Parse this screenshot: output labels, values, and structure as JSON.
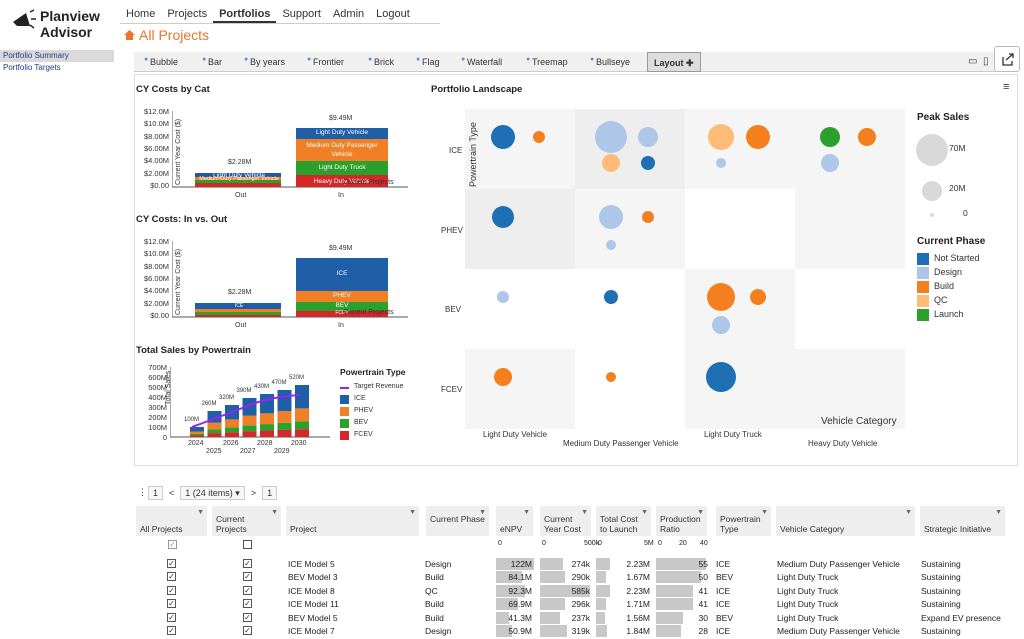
{
  "brand": {
    "line1": "Planview",
    "line2": "Advisor"
  },
  "nav": [
    "Home",
    "Projects",
    "Portfolios",
    "Support",
    "Admin",
    "Logout"
  ],
  "nav_active": "Portfolios",
  "page_title": "All Projects",
  "sidebar": [
    "Portfolio Summary",
    "Portfolio Targets"
  ],
  "tabs": [
    "Bubble",
    "Bar",
    "By years",
    "Frontier",
    "Brick",
    "Flag",
    "Waterfall",
    "Treemap",
    "Bullseye",
    "Layout"
  ],
  "tab_active": "Layout",
  "charts": {
    "cy_cat": {
      "title": "CY Costs by Cat",
      "ylabel": "Current Year Cost ($)",
      "yticks": [
        "$12.0M",
        "$10.0M",
        "$8.00M",
        "$6.00M",
        "$4.00M",
        "$2.00M",
        "$0.00"
      ],
      "xlabels": [
        "Out",
        "In"
      ],
      "totals": [
        "$2.28M",
        "$9.49M"
      ],
      "xaxis_title": "Current Projects",
      "segments_in": [
        "Light Duty Vehicle",
        "Medium Duty Passenger Vehicle",
        "Light Duty Truck",
        "Heavy Duty Vehicle"
      ],
      "segments_out": [
        "Light Duty Vehicle",
        "Medium Duty Passenger Vehicle"
      ]
    },
    "cy_inout": {
      "title": "CY Costs: In vs. Out",
      "ylabel": "Current Year Cost ($)",
      "yticks": [
        "$12.0M",
        "$10.0M",
        "$8.00M",
        "$6.00M",
        "$4.00M",
        "$2.00M",
        "$0.00"
      ],
      "xlabels": [
        "Out",
        "In"
      ],
      "totals": [
        "$2.28M",
        "$9.49M"
      ],
      "xaxis_title": "Current Projects",
      "segments_in": [
        "ICE",
        "PHEV",
        "BEV",
        "FCEV"
      ],
      "segments_out": [
        "ICE"
      ]
    },
    "sales": {
      "title": "Total Sales by Powertrain",
      "ylabel": "Total Sales",
      "yticks": [
        "700M",
        "600M",
        "500M",
        "400M",
        "300M",
        "200M",
        "100M",
        "0"
      ],
      "years_top": [
        "2024",
        "2026",
        "2028",
        "2030"
      ],
      "years_bottom": [
        "2025",
        "2027",
        "2029"
      ],
      "bar_labels": [
        "100M",
        "260M",
        "320M",
        "390M",
        "430M",
        "470M",
        "520M"
      ],
      "legend_title": "Powertrain Type",
      "legend": [
        "Target Revenue",
        "ICE",
        "PHEV",
        "BEV",
        "FCEV"
      ]
    },
    "landscape": {
      "title": "Portfolio Landscape",
      "ylabel": "Powertrain Type",
      "rows": [
        "ICE",
        "PHEV",
        "BEV",
        "FCEV"
      ],
      "cols_top": [
        "Light Duty Vehicle",
        "Light Duty Truck"
      ],
      "cols_bottom": [
        "Medium Duty Passenger Vehicle",
        "Heavy Duty Vehicle"
      ],
      "xlabel": "Vehicle Category",
      "size_title": "Peak Sales",
      "size_labels": [
        "70M",
        "20M",
        "0"
      ],
      "phase_title": "Current Phase",
      "phases": [
        "Not Started",
        "Design",
        "Build",
        "QC",
        "Launch"
      ]
    }
  },
  "colors": {
    "ice": "#1f5fa8",
    "phev": "#f07f26",
    "bev": "#2ca02c",
    "fcev": "#d62728",
    "notstarted": "#1f6fb4",
    "design": "#aec7e8",
    "build": "#f47f1f",
    "qc": "#ffbb78",
    "launch": "#2ca02c",
    "accent": "#e8762b"
  },
  "pager": {
    "first": "1",
    "prev": "<",
    "current": "1 (24 items)",
    "next": ">",
    "last": "1"
  },
  "columns": [
    "All Projects",
    "Current Projects",
    "Project",
    "Current Phase",
    "eNPV",
    "Current Year Cost",
    "Total Cost to Launch",
    "Production Ratio",
    "Powertrain Type",
    "Vehicle Category",
    "Strategic Initiative"
  ],
  "col_scales": {
    "enpv": [
      "0"
    ],
    "cyc": [
      "0",
      "500k"
    ],
    "tcl": [
      "0",
      "5M"
    ],
    "pr": [
      "0",
      "20",
      "40"
    ]
  },
  "rows": [
    {
      "project": "ICE Model 5",
      "phase": "Design",
      "enpv": "122M",
      "cyc": "274k",
      "tcl": "2.23M",
      "pr": "55",
      "pt": "ICE",
      "vc": "Medium Duty Passenger Vehicle",
      "si": "Sustaining"
    },
    {
      "project": "BEV Model 3",
      "phase": "Build",
      "enpv": "84.1M",
      "cyc": "290k",
      "tcl": "1.67M",
      "pr": "50",
      "pt": "BEV",
      "vc": "Light Duty Truck",
      "si": "Sustaining"
    },
    {
      "project": "ICE Model 8",
      "phase": "QC",
      "enpv": "92.3M",
      "cyc": "585k",
      "tcl": "2.23M",
      "pr": "41",
      "pt": "ICE",
      "vc": "Light Duty Truck",
      "si": "Sustaining"
    },
    {
      "project": "ICE Model 11",
      "phase": "Build",
      "enpv": "69.9M",
      "cyc": "296k",
      "tcl": "1.71M",
      "pr": "41",
      "pt": "ICE",
      "vc": "Light Duty Truck",
      "si": "Sustaining"
    },
    {
      "project": "BEV Model 5",
      "phase": "Build",
      "enpv": "41.3M",
      "cyc": "237k",
      "tcl": "1.56M",
      "pr": "30",
      "pt": "BEV",
      "vc": "Light Duty Truck",
      "si": "Expand EV presence"
    },
    {
      "project": "ICE Model 7",
      "phase": "Design",
      "enpv": "50.9M",
      "cyc": "319k",
      "tcl": "1.84M",
      "pr": "28",
      "pt": "ICE",
      "vc": "Medium Duty Passenger Vehicle",
      "si": "Sustaining"
    }
  ]
}
